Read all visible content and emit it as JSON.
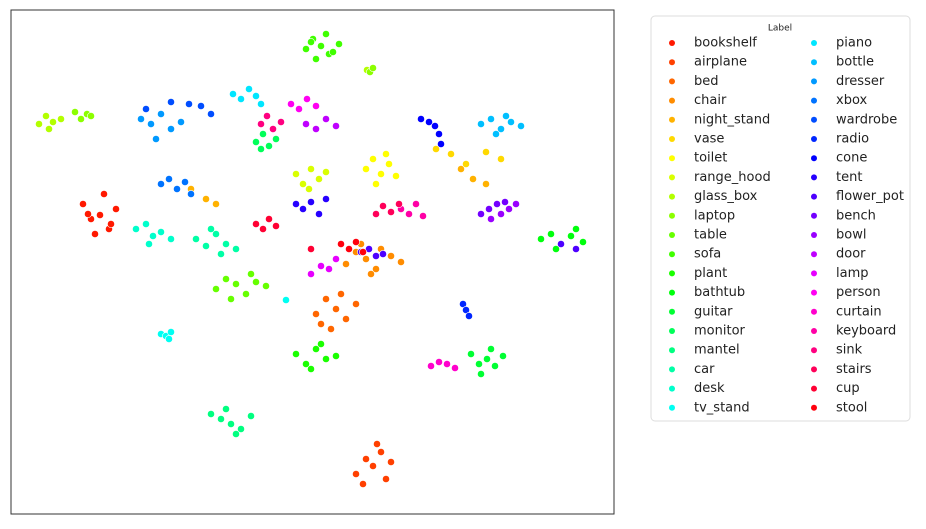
{
  "chart_data": {
    "type": "scatter",
    "legend_title": "Label",
    "legend": "outside-right",
    "grid": false,
    "xlim": [
      0,
      603
    ],
    "ylim": [
      0,
      504
    ],
    "series": [
      {
        "name": "bookshelf",
        "color": "hsl(6,100%,50%)",
        "x": [
          72,
          80,
          89,
          98,
          105,
          84,
          93,
          77,
          100
        ],
        "y": [
          310,
          295,
          299,
          285,
          305,
          280,
          320,
          300,
          290
        ]
      },
      {
        "name": "airplane",
        "color": "hsl(15,100%,50%)",
        "x": [
          345,
          355,
          362,
          370,
          380,
          352,
          366,
          375
        ],
        "y": [
          40,
          55,
          48,
          62,
          52,
          30,
          70,
          35
        ]
      },
      {
        "name": "bed",
        "color": "hsl(24,100%,50%)",
        "x": [
          305,
          315,
          325,
          335,
          345,
          320,
          330,
          310
        ],
        "y": [
          200,
          215,
          205,
          195,
          210,
          185,
          220,
          190
        ]
      },
      {
        "name": "chair",
        "color": "hsl(33,100%,50%)",
        "x": [
          335,
          345,
          355,
          365,
          380,
          350,
          360,
          370,
          390
        ],
        "y": [
          250,
          262,
          255,
          245,
          258,
          270,
          240,
          265,
          252
        ]
      },
      {
        "name": "night_stand",
        "color": "hsl(42,100%,50%)",
        "x": [
          180,
          195,
          205,
          450,
          462,
          475
        ],
        "y": [
          325,
          315,
          310,
          345,
          335,
          330
        ]
      },
      {
        "name": "vase",
        "color": "hsl(51,100%,50%)",
        "x": [
          425,
          440,
          475,
          490,
          455
        ],
        "y": [
          365,
          360,
          362,
          355,
          350
        ]
      },
      {
        "name": "toilet",
        "color": "hsl(60,100%,50%)",
        "x": [
          355,
          362,
          370,
          378,
          385,
          365,
          375
        ],
        "y": [
          345,
          355,
          340,
          350,
          338,
          330,
          360
        ]
      },
      {
        "name": "range_hood",
        "color": "hsl(69,100%,50%)",
        "x": [
          285,
          292,
          300,
          308,
          315,
          298
        ],
        "y": [
          340,
          330,
          345,
          335,
          342,
          325
        ]
      },
      {
        "name": "glass_box",
        "color": "hsl(78,100%,50%)",
        "x": [
          28,
          35,
          42,
          50,
          38,
          356
        ],
        "y": [
          390,
          398,
          392,
          395,
          385,
          444
        ]
      },
      {
        "name": "laptop",
        "color": "hsl(87,100%,50%)",
        "x": [
          64,
          70,
          76,
          80,
          359,
          362
        ],
        "y": [
          402,
          395,
          400,
          398,
          442,
          446
        ]
      },
      {
        "name": "table",
        "color": "hsl(96,100%,50%)",
        "x": [
          205,
          215,
          225,
          235,
          245,
          255,
          220,
          240
        ],
        "y": [
          225,
          235,
          230,
          220,
          232,
          228,
          215,
          240
        ]
      },
      {
        "name": "sofa",
        "color": "hsl(105,100%,50%)",
        "x": [
          295,
          302,
          310,
          318,
          328,
          305,
          315,
          322,
          300
        ],
        "y": [
          465,
          475,
          468,
          460,
          470,
          455,
          480,
          462,
          472
        ]
      },
      {
        "name": "plant",
        "color": "hsl(114,100%,50%)",
        "x": [
          285,
          295,
          305,
          315,
          325,
          300,
          310
        ],
        "y": [
          160,
          150,
          165,
          155,
          158,
          145,
          170
        ]
      },
      {
        "name": "bathtub",
        "color": "hsl(123,100%,50%)",
        "x": [
          530,
          540,
          550,
          560,
          572,
          545,
          565
        ],
        "y": [
          275,
          280,
          270,
          278,
          272,
          265,
          285
        ]
      },
      {
        "name": "guitar",
        "color": "hsl(132,100%,50%)",
        "x": [
          460,
          468,
          476,
          484,
          492,
          470,
          480
        ],
        "y": [
          160,
          150,
          155,
          148,
          158,
          140,
          165
        ]
      },
      {
        "name": "monitor",
        "color": "hsl(141,100%,50%)",
        "x": [
          245,
          252,
          258,
          265,
          250
        ],
        "y": [
          372,
          380,
          368,
          375,
          365
        ]
      },
      {
        "name": "mantel",
        "color": "hsl(150,100%,50%)",
        "x": [
          200,
          210,
          220,
          230,
          240,
          215,
          225
        ],
        "y": [
          100,
          95,
          90,
          85,
          98,
          105,
          80
        ]
      },
      {
        "name": "car",
        "color": "hsl(159,100%,50%)",
        "x": [
          185,
          195,
          205,
          215,
          225,
          200,
          210
        ],
        "y": [
          275,
          268,
          280,
          270,
          265,
          285,
          260
        ]
      },
      {
        "name": "desk",
        "color": "hsl(168,100%,50%)",
        "x": [
          125,
          135,
          142,
          150,
          160,
          138
        ],
        "y": [
          285,
          290,
          278,
          282,
          275,
          270
        ]
      },
      {
        "name": "tv_stand",
        "color": "hsl(177,100%,50%)",
        "x": [
          150,
          155,
          160,
          158,
          275
        ],
        "y": [
          180,
          178,
          182,
          175,
          214
        ]
      },
      {
        "name": "piano",
        "color": "hsl(186,100%,50%)",
        "x": [
          222,
          230,
          238,
          245,
          250
        ],
        "y": [
          420,
          415,
          425,
          418,
          410
        ]
      },
      {
        "name": "bottle",
        "color": "hsl(195,100%,50%)",
        "x": [
          470,
          480,
          490,
          500,
          510,
          485,
          495
        ],
        "y": [
          390,
          395,
          385,
          392,
          388,
          380,
          398
        ]
      },
      {
        "name": "dresser",
        "color": "hsl(204,100%,50%)",
        "x": [
          130,
          140,
          150,
          160,
          170,
          145
        ],
        "y": [
          395,
          390,
          400,
          385,
          392,
          375
        ]
      },
      {
        "name": "xbox",
        "color": "hsl(213,100%,50%)",
        "x": [
          150,
          158,
          166,
          174,
          180
        ],
        "y": [
          330,
          335,
          325,
          332,
          320
        ]
      },
      {
        "name": "wardrobe",
        "color": "hsl(222,100%,50%)",
        "x": [
          135,
          160,
          178,
          190,
          200
        ],
        "y": [
          405,
          412,
          410,
          408,
          400
        ]
      },
      {
        "name": "radio",
        "color": "hsl(231,100%,50%)",
        "x": [
          452,
          455,
          458
        ],
        "y": [
          210,
          204,
          198
        ]
      },
      {
        "name": "cone",
        "color": "hsl(240,100%,50%)",
        "x": [
          410,
          418,
          424,
          428,
          430
        ],
        "y": [
          395,
          392,
          388,
          380,
          370
        ]
      },
      {
        "name": "tent",
        "color": "hsl(249,100%,50%)",
        "x": [
          285,
          292,
          300,
          308,
          315
        ],
        "y": [
          310,
          305,
          312,
          300,
          315
        ]
      },
      {
        "name": "flower_pot",
        "color": "hsl(258,100%,50%)",
        "x": [
          350,
          358,
          365,
          372,
          550,
          565
        ],
        "y": [
          262,
          265,
          258,
          260,
          270,
          265
        ]
      },
      {
        "name": "bench",
        "color": "hsl(267,100%,50%)",
        "x": [
          470,
          478,
          486,
          494
        ],
        "y": [
          300,
          305,
          310,
          312
        ]
      },
      {
        "name": "bowl",
        "color": "hsl(276,100%,50%)",
        "x": [
          480,
          490,
          498,
          505
        ],
        "y": [
          295,
          300,
          305,
          310
        ]
      },
      {
        "name": "door",
        "color": "hsl(285,100%,50%)",
        "x": [
          295,
          305,
          315,
          325
        ],
        "y": [
          390,
          385,
          395,
          388
        ]
      },
      {
        "name": "lamp",
        "color": "hsl(294,100%,50%)",
        "x": [
          300,
          310,
          318,
          325
        ],
        "y": [
          240,
          248,
          245,
          255
        ]
      },
      {
        "name": "person",
        "color": "hsl(303,100%,50%)",
        "x": [
          280,
          288,
          296,
          305
        ],
        "y": [
          410,
          405,
          415,
          408
        ]
      },
      {
        "name": "curtain",
        "color": "hsl(312,100%,50%)",
        "x": [
          420,
          428,
          436,
          444
        ],
        "y": [
          148,
          152,
          150,
          146
        ]
      },
      {
        "name": "keyboard",
        "color": "hsl(321,100%,50%)",
        "x": [
          390,
          398,
          405,
          412
        ],
        "y": [
          305,
          300,
          310,
          298
        ]
      },
      {
        "name": "sink",
        "color": "hsl(330,100%,50%)",
        "x": [
          250,
          256,
          262,
          270
        ],
        "y": [
          390,
          398,
          385,
          392
        ]
      },
      {
        "name": "stairs",
        "color": "hsl(339,100%,50%)",
        "x": [
          365,
          372,
          380,
          388
        ],
        "y": [
          300,
          308,
          302,
          310
        ]
      },
      {
        "name": "cup",
        "color": "hsl(348,100%,50%)",
        "x": [
          245,
          252,
          258,
          265,
          300
        ],
        "y": [
          290,
          285,
          295,
          288,
          265
        ]
      },
      {
        "name": "stool",
        "color": "hsl(357,100%,50%)",
        "x": [
          330,
          338,
          345,
          352
        ],
        "y": [
          270,
          265,
          272,
          262
        ]
      }
    ]
  }
}
